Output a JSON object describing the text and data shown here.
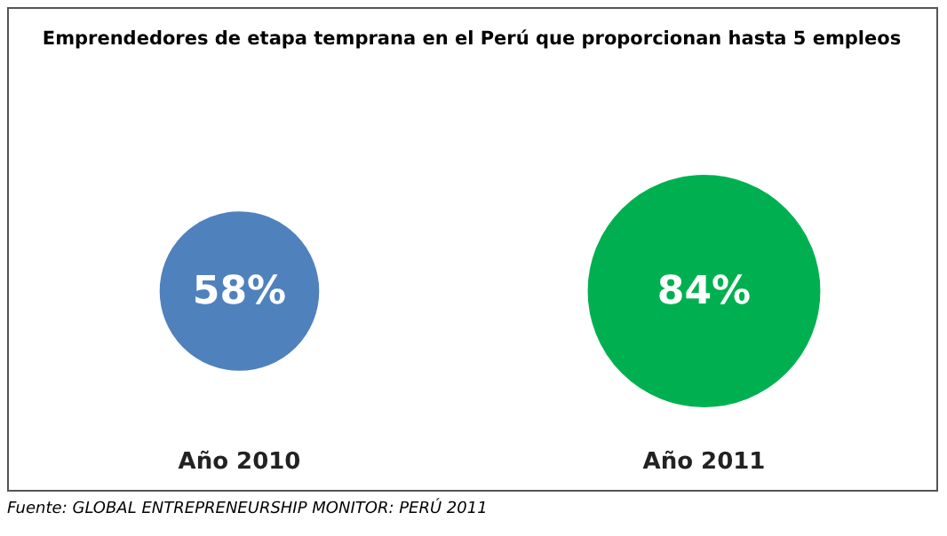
{
  "chart_data": {
    "type": "other",
    "title": "Emprendedores de etapa temprana en el Perú que proporcionan hasta 5 empleos",
    "categories": [
      "Año 2010",
      "Año 2011"
    ],
    "values": [
      58,
      84
    ],
    "value_labels": [
      "58%",
      "84%"
    ],
    "colors": [
      "#4f81bd",
      "#00b050"
    ],
    "annotations": [
      "Fuente: GLOBAL ENTREPRENEURSHIP MONITOR: PERÚ 2011"
    ]
  }
}
